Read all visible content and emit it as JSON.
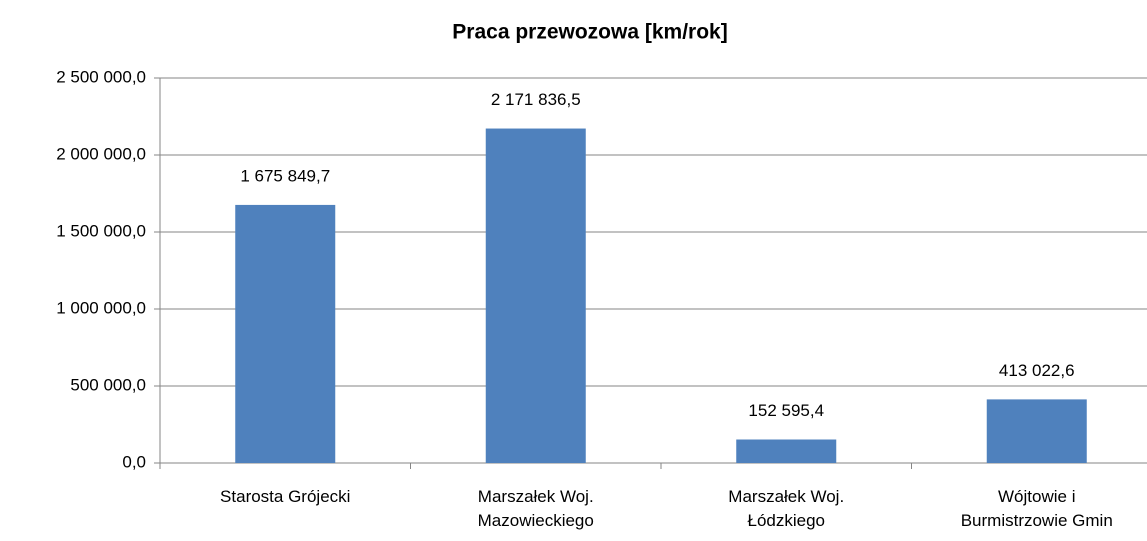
{
  "chart_data": {
    "type": "bar",
    "title": "Praca przewozowa [km/rok]",
    "categories": [
      "Starosta Grójecki",
      "Marszałek Woj.\nMazowieckiego",
      "Marszałek Woj.\nŁódzkiego",
      "Wójtowie i\nBurmistrzowie Gmin"
    ],
    "values": [
      1675849.7,
      2171836.5,
      152595.4,
      413022.6
    ],
    "value_labels": [
      "1 675 849,7",
      "2 171 836,5",
      "152 595,4",
      "413 022,6"
    ],
    "color": "#4f81bd",
    "ylim": [
      0,
      2500000
    ],
    "yticks": [
      {
        "value": 0,
        "label": "0,0"
      },
      {
        "value": 500000,
        "label": "500 000,0"
      },
      {
        "value": 1000000,
        "label": "1 000 000,0"
      },
      {
        "value": 1500000,
        "label": "1 500 000,0"
      },
      {
        "value": 2000000,
        "label": "2 000 000,0"
      },
      {
        "value": 2500000,
        "label": "2 500 000,0"
      }
    ],
    "grid": true
  }
}
